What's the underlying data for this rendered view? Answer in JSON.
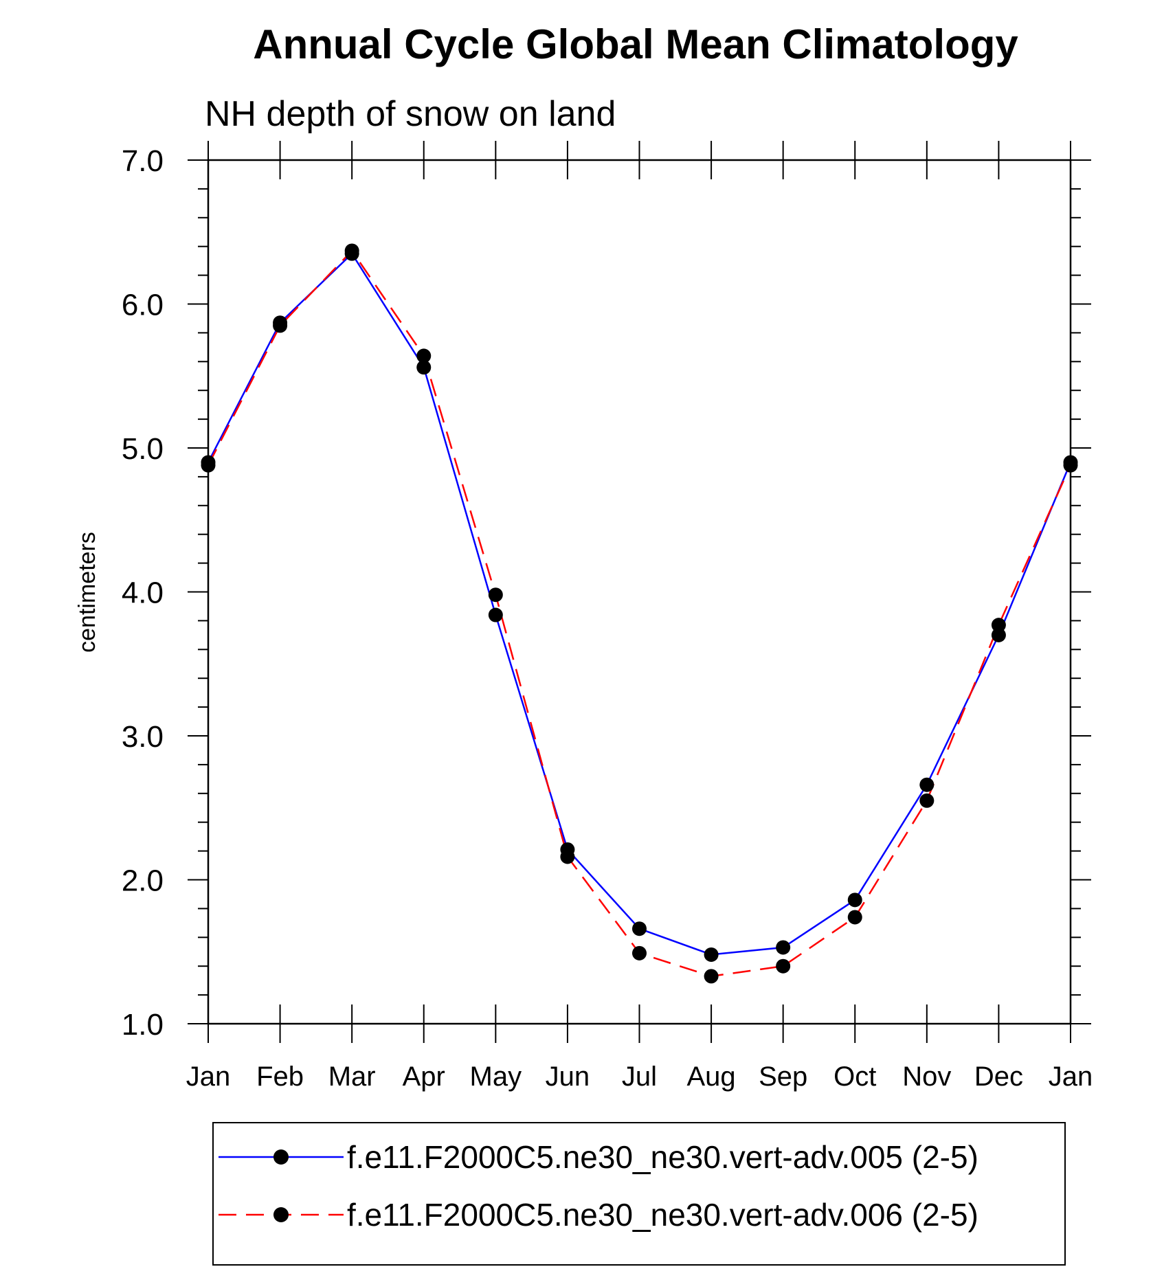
{
  "chart_data": {
    "type": "line",
    "title": "Annual Cycle Global Mean Climatology",
    "subtitle": "NH depth of snow on land",
    "xlabel": "",
    "ylabel": "centimeters",
    "ylim": [
      1.0,
      7.0
    ],
    "y_ticks": [
      "1.0",
      "2.0",
      "3.0",
      "4.0",
      "5.0",
      "6.0",
      "7.0"
    ],
    "categories": [
      "Jan",
      "Feb",
      "Mar",
      "Apr",
      "May",
      "Jun",
      "Jul",
      "Aug",
      "Sep",
      "Oct",
      "Nov",
      "Dec",
      "Jan"
    ],
    "grid": false,
    "legend_position": "bottom",
    "series": [
      {
        "name": "f.e11.F2000C5.ne30_ne30.vert-adv.005 (2-5)",
        "color": "#0000ff",
        "dash": "solid",
        "marker": "filled-circle",
        "values": [
          4.9,
          5.87,
          6.35,
          5.56,
          3.84,
          2.21,
          1.66,
          1.48,
          1.53,
          1.86,
          2.66,
          3.7,
          4.9
        ]
      },
      {
        "name": "f.e11.F2000C5.ne30_ne30.vert-adv.006 (2-5)",
        "color": "#ff0000",
        "dash": "dashed",
        "marker": "filled-circle",
        "values": [
          4.88,
          5.85,
          6.37,
          5.64,
          3.98,
          2.16,
          1.49,
          1.33,
          1.4,
          1.74,
          2.55,
          3.77,
          4.88
        ]
      }
    ]
  }
}
